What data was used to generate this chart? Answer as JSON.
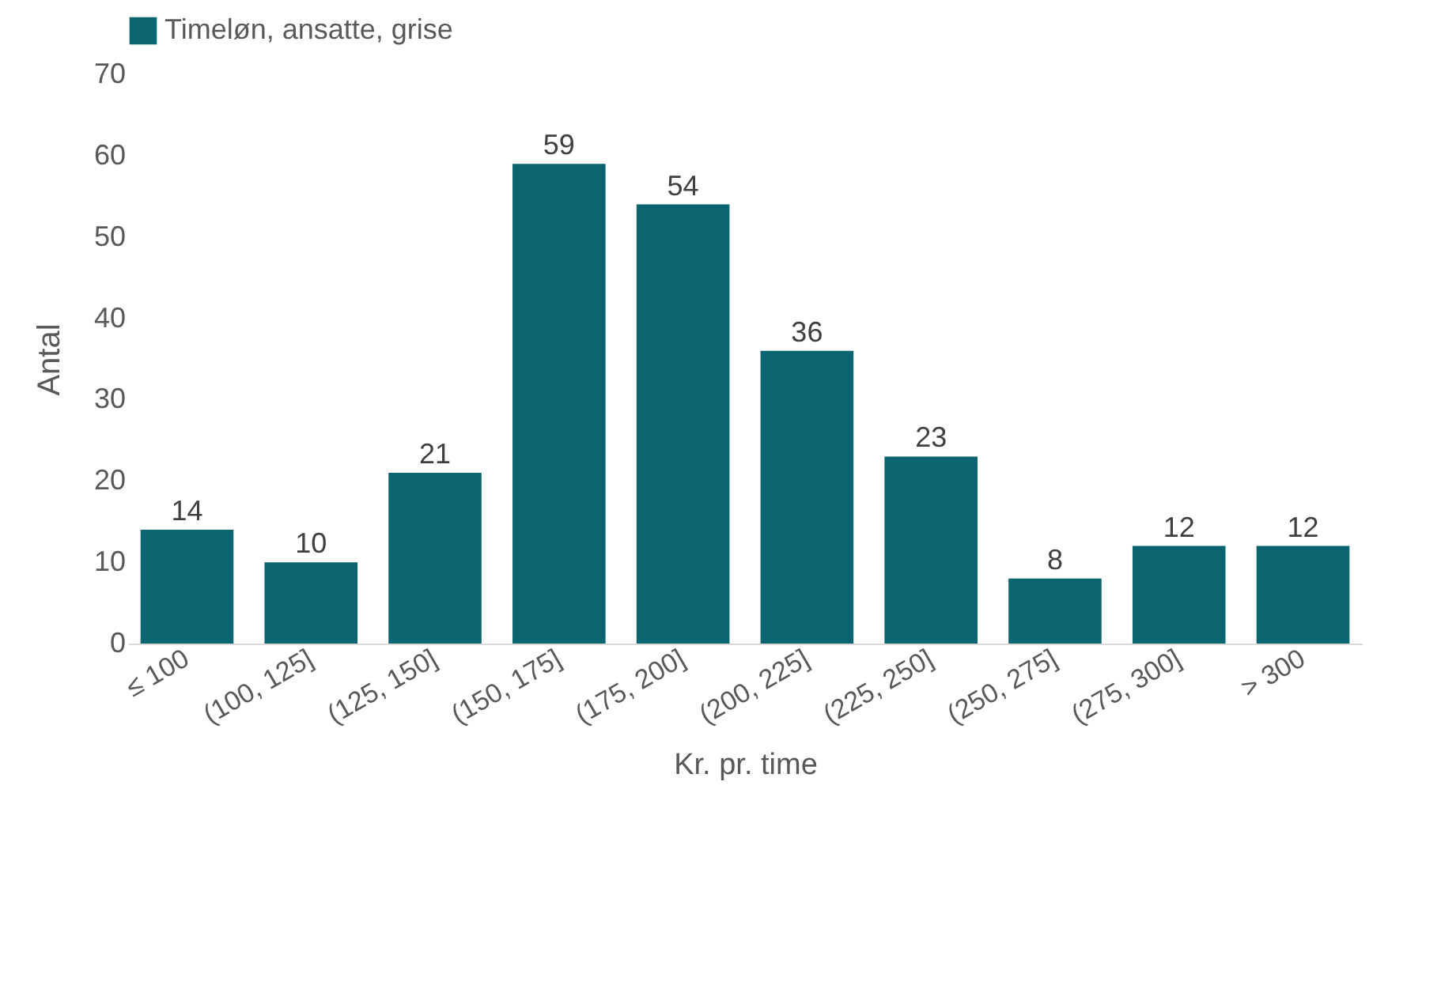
{
  "chart_data": {
    "type": "bar",
    "xlabel": "Kr. pr. time",
    "ylabel": "Antal",
    "categories": [
      "≤ 100",
      "(100, 125]",
      "(125, 150]",
      "(150, 175]",
      "(175, 200]",
      "(200, 225]",
      "(225, 250]",
      "(250, 275]",
      "(275, 300]",
      "> 300"
    ],
    "series": [
      {
        "name": "Timeløn, ansatte, grise",
        "color": "#0a6570",
        "values": [
          14,
          10,
          21,
          59,
          54,
          36,
          23,
          8,
          12,
          12
        ]
      }
    ],
    "ylim": [
      0,
      70
    ],
    "yticks": [
      0,
      10,
      20,
      30,
      40,
      50,
      60,
      70
    ],
    "grid": false,
    "legend": "top",
    "data_labels": true
  }
}
